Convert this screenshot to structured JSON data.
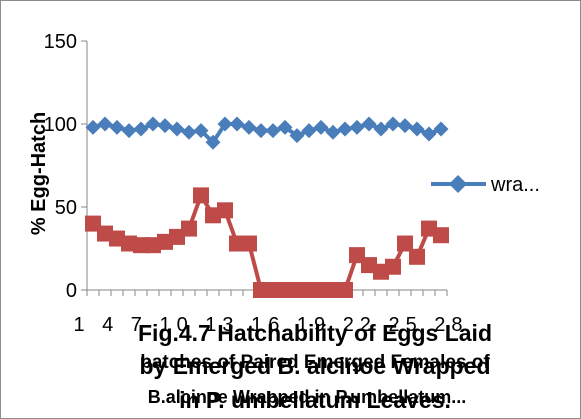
{
  "chart_data": {
    "type": "line",
    "title": "",
    "xlabel": "",
    "ylabel": "% Egg-Hatch",
    "ylim": [
      0,
      150
    ],
    "yticks": [
      0,
      50,
      100,
      150
    ],
    "x": [
      1,
      2,
      3,
      4,
      5,
      6,
      7,
      8,
      9,
      10,
      11,
      12,
      13,
      14,
      15,
      16,
      17,
      18,
      19,
      20,
      21,
      22,
      23,
      24,
      25,
      26,
      27,
      28,
      29,
      30
    ],
    "x_tick_labels_visible": "1 4 7 10 13 16 19 22 25 28",
    "grid": false,
    "legend_position": "right",
    "series": [
      {
        "name": "wra...",
        "color": "#4a7ebb",
        "marker": "diamond",
        "values": [
          98,
          100,
          98,
          96,
          97,
          100,
          99,
          97,
          95,
          96,
          89,
          100,
          100,
          98,
          96,
          96,
          98,
          93,
          96,
          98,
          95,
          97,
          98,
          100,
          97,
          100,
          99,
          97,
          94,
          97
        ]
      },
      {
        "color": "#be4b48",
        "marker": "square",
        "values": [
          40,
          34,
          31,
          28,
          27,
          27,
          29,
          32,
          37,
          57,
          45,
          48,
          28,
          28,
          0,
          0,
          0,
          0,
          0,
          0,
          0,
          0,
          21,
          15,
          11,
          14,
          28,
          20,
          37,
          33
        ]
      }
    ],
    "caption_overlay": [
      "Fig.4.7 Hatchability of Eggs Laid",
      "by Emerged B. alcinoe Wrapped",
      "in P. umbellatum Leaves."
    ],
    "category_overlay": [
      "batches of Paired Emerged Females of",
      "B.alcinoe Wrapped in P.umbellatum..."
    ]
  }
}
